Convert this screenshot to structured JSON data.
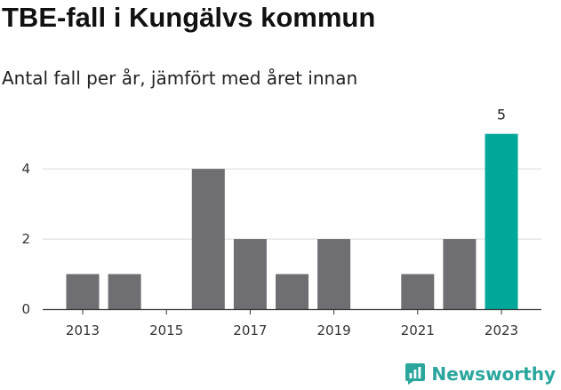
{
  "title": "TBE-fall i Kungälvs kommun",
  "subtitle": "Antal fall per år, jämfört med året innan",
  "brand": {
    "name": "Newsworthy",
    "color": "#2aa69d",
    "icon": "chart-bubble-icon"
  },
  "colors": {
    "bar": "#6e6e73",
    "highlight": "#00a89a",
    "grid": "#d9d9d9",
    "axis": "#333333"
  },
  "chart_data": {
    "type": "bar",
    "categories": [
      "2013",
      "2014",
      "2015",
      "2016",
      "2017",
      "2018",
      "2019",
      "2020",
      "2021",
      "2022",
      "2023"
    ],
    "values": [
      1,
      1,
      0,
      4,
      2,
      1,
      2,
      0,
      1,
      2,
      5
    ],
    "highlight_category": "2023",
    "data_labels": {
      "2023": "5"
    },
    "xtick_labels": [
      "2013",
      "2015",
      "2017",
      "2019",
      "2021",
      "2023"
    ],
    "yticks": [
      0,
      2,
      4
    ],
    "ylim": [
      0,
      5.6
    ],
    "grid": true,
    "xlabel": "",
    "ylabel": ""
  }
}
